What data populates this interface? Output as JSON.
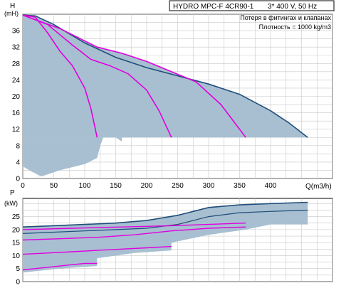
{
  "header": {
    "title": "HYDRO MPC-F 4CR90-1",
    "spec": "3* 400 V, 50 Hz",
    "note1": "Потеря в фитингах и клапанах",
    "note2": "Плотность = 1000 kg/m3"
  },
  "colors": {
    "qh_curve": "#1f4e79",
    "speed_curves": "#e000e0",
    "band": "#a8bfd1",
    "grid": "#c8c8c8",
    "axes": "#000000"
  },
  "chart_data": [
    {
      "type": "line",
      "name": "QH",
      "xlabel": "Q(m3/h)",
      "ylabel_top": "H",
      "ylabel_unit": "(mH)",
      "xlim": [
        0,
        500
      ],
      "ylim": [
        0,
        40
      ],
      "grid": true,
      "x_ticks": [
        0,
        50,
        100,
        150,
        200,
        250,
        300,
        350,
        400
      ],
      "y_ticks": [
        0,
        4,
        8,
        12,
        16,
        20,
        24,
        28,
        32,
        36
      ],
      "max_curve": {
        "x": [
          0,
          20,
          50,
          100,
          150,
          200,
          250,
          300,
          350,
          400,
          430,
          460
        ],
        "y": [
          39.8,
          39.6,
          37.5,
          33,
          29.5,
          27,
          25,
          23,
          20.5,
          16.5,
          13.5,
          10
        ]
      },
      "speed_curves": [
        {
          "x": [
            0,
            20,
            40,
            60,
            80,
            100,
            110,
            120
          ],
          "y": [
            39.8,
            39.3,
            35.5,
            31,
            27.5,
            22,
            17,
            10
          ]
        },
        {
          "x": [
            0,
            40,
            80,
            110,
            140,
            170,
            200,
            220,
            240
          ],
          "y": [
            39.8,
            37.5,
            32.5,
            29,
            27.5,
            25.5,
            21.5,
            16.5,
            10
          ]
        },
        {
          "x": [
            0,
            60,
            120,
            160,
            200,
            240,
            280,
            320,
            360
          ],
          "y": [
            39.8,
            36.5,
            32,
            30.5,
            28.5,
            26,
            23.5,
            18,
            10
          ]
        }
      ],
      "shaded_lower": {
        "x": [
          0,
          10,
          30,
          60,
          100,
          120,
          125,
          130,
          140,
          150,
          160,
          160
        ],
        "y": [
          3,
          2,
          0.5,
          2,
          3.5,
          5,
          8,
          10,
          10.5,
          10,
          9,
          10
        ]
      }
    },
    {
      "type": "line",
      "name": "QP",
      "ylabel_top": "P",
      "ylabel_unit": "(kW)",
      "xlim": [
        0,
        500
      ],
      "ylim": [
        0,
        32
      ],
      "grid": true,
      "y_ticks": [
        0,
        5,
        10,
        15,
        20,
        25
      ],
      "max_curve": {
        "x": [
          0,
          50,
          100,
          150,
          200,
          250,
          300,
          350,
          400,
          460
        ],
        "y": [
          21,
          21.5,
          22,
          22.5,
          23.5,
          25.5,
          28.5,
          29.5,
          30,
          30.5
        ]
      },
      "second_curve": {
        "x": [
          0,
          50,
          100,
          150,
          200,
          250,
          300,
          350,
          400,
          460
        ],
        "y": [
          18.5,
          19,
          19.5,
          20,
          20.5,
          22,
          25,
          26.5,
          27,
          27.5
        ]
      },
      "speed_curves": [
        {
          "x": [
            0,
            20,
            40,
            60,
            80,
            100,
            120
          ],
          "y": [
            4.5,
            5,
            5.5,
            6,
            6.5,
            7,
            7
          ]
        },
        {
          "x": [
            0,
            40,
            80,
            120,
            160,
            200,
            240
          ],
          "y": [
            10.5,
            11,
            11.5,
            12,
            12.5,
            13,
            13.5
          ]
        },
        {
          "x": [
            0,
            60,
            120,
            180,
            240,
            300,
            360
          ],
          "y": [
            16,
            16.5,
            17,
            18,
            19.5,
            20.5,
            21
          ]
        },
        {
          "x": [
            0,
            80,
            160,
            240,
            300,
            360
          ],
          "y": [
            20,
            20.5,
            21,
            21.5,
            22,
            22.5
          ]
        }
      ]
    }
  ],
  "top_tick_labels_x": [
    "0",
    "50",
    "100",
    "150",
    "200",
    "250",
    "300",
    "350",
    "400"
  ],
  "top_tick_labels_y": [
    "0",
    "4",
    "8",
    "12",
    "16",
    "20",
    "24",
    "28",
    "32",
    "36"
  ],
  "bottom_tick_labels_y": [
    "0",
    "5",
    "10",
    "15",
    "20",
    "25"
  ]
}
